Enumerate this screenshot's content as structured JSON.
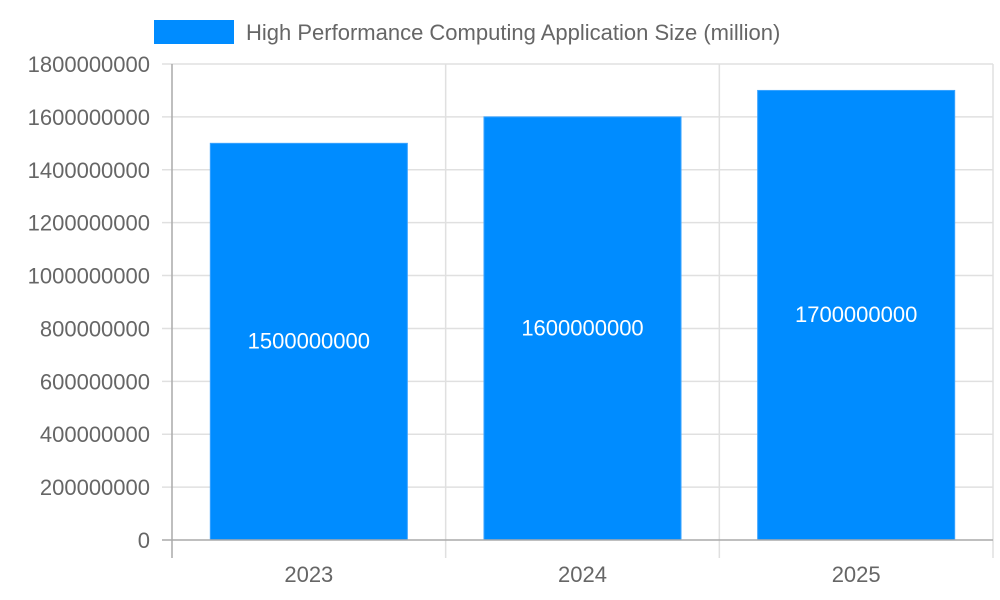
{
  "chart_data": {
    "type": "bar",
    "title": "",
    "xlabel": "",
    "ylabel": "",
    "categories": [
      "2023",
      "2024",
      "2025"
    ],
    "series": [
      {
        "name": "High Performance Computing Application Size (million)",
        "values": [
          1500000000,
          1600000000,
          1700000000
        ],
        "color": "#008cff"
      }
    ],
    "data_labels": [
      "1500000000",
      "1600000000",
      "1700000000"
    ],
    "ylim": [
      0,
      1800000000
    ],
    "yticks": [
      0,
      200000000,
      400000000,
      600000000,
      800000000,
      1000000000,
      1200000000,
      1400000000,
      1600000000,
      1800000000
    ],
    "grid": true,
    "legend_position": "top"
  },
  "legend": {
    "label": "High Performance Computing Application Size (million)",
    "color": "#008cff"
  }
}
